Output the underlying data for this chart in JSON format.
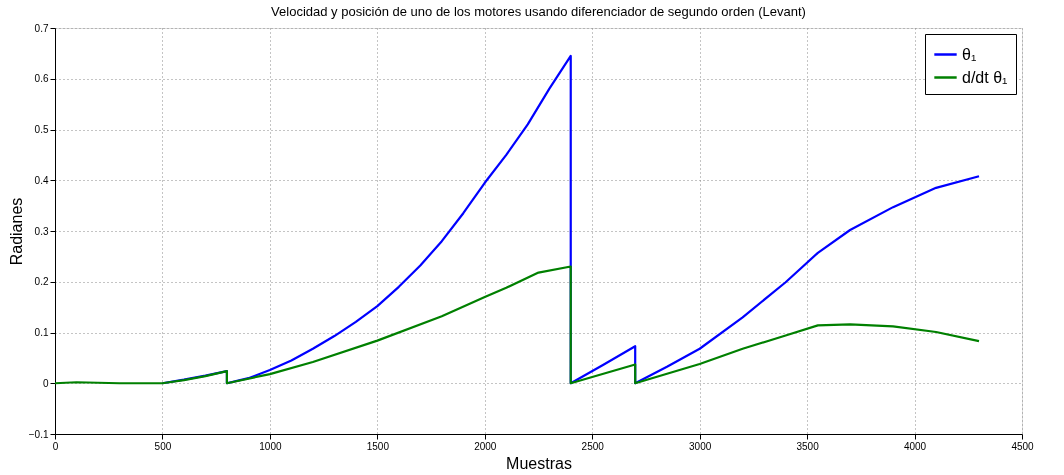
{
  "chart_data": {
    "type": "line",
    "title": "Velocidad y posición de uno de los motores usando diferenciador de segundo orden (Levant)",
    "xlabel": "Muestras",
    "ylabel": "Radianes",
    "xlim": [
      0,
      4500
    ],
    "xticks": [
      0,
      500,
      1000,
      1500,
      2000,
      2500,
      3000,
      3500,
      4000,
      4500
    ],
    "ylim": [
      -0.1,
      0.7
    ],
    "yticks": [
      -0.1,
      0,
      0.1,
      0.2,
      0.3,
      0.4,
      0.5,
      0.6,
      0.7
    ],
    "grid": true,
    "legend": "top right",
    "line_style": "solid",
    "series": [
      {
        "name": "θ₁",
        "color": "#0000ff",
        "x": [
          500,
          600,
          700,
          800,
          800,
          900,
          1000,
          1100,
          1200,
          1300,
          1400,
          1500,
          1600,
          1700,
          1800,
          1900,
          2000,
          2100,
          2200,
          2300,
          2400,
          2400,
          2550,
          2700,
          2700,
          2850,
          3000,
          3200,
          3400,
          3550,
          3700,
          3900,
          4100,
          4300
        ],
        "values": [
          0,
          0.007,
          0.015,
          0.024,
          0,
          0.01,
          0.026,
          0.045,
          0.068,
          0.093,
          0.121,
          0.152,
          0.19,
          0.232,
          0.28,
          0.335,
          0.395,
          0.45,
          0.51,
          0.58,
          0.645,
          0,
          0.036,
          0.073,
          0,
          0.033,
          0.068,
          0.13,
          0.199,
          0.257,
          0.302,
          0.347,
          0.385,
          0.408
        ]
      },
      {
        "name": "d/dt θ₁",
        "color": "#008000",
        "x": [
          0,
          100,
          300,
          500,
          600,
          700,
          800,
          800,
          1000,
          1200,
          1500,
          1800,
          2000,
          2100,
          2250,
          2400,
          2400,
          2700,
          2700,
          3000,
          3200,
          3400,
          3550,
          3700,
          3900,
          4100,
          4300
        ],
        "values": [
          0,
          0.002,
          0,
          0,
          0.006,
          0.014,
          0.024,
          0,
          0.018,
          0.042,
          0.084,
          0.132,
          0.17,
          0.188,
          0.218,
          0.23,
          0,
          0.037,
          0,
          0.038,
          0.068,
          0.094,
          0.114,
          0.116,
          0.112,
          0.101,
          0.083
        ]
      }
    ]
  }
}
